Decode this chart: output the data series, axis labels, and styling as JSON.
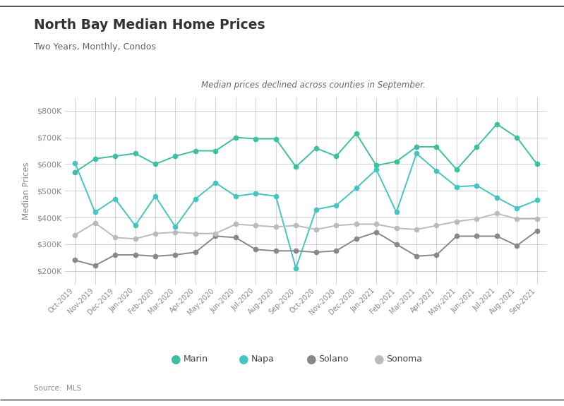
{
  "title": "North Bay Median Home Prices",
  "subtitle": "Two Years, Monthly, Condos",
  "annotation": "Median prices declined across counties in September.",
  "ylabel": "Median Prices",
  "source": "Source:  MLS",
  "background_color": "#ffffff",
  "plot_bg_color": "#ffffff",
  "grid_color": "#cccccc",
  "x_labels": [
    "Oct-2019",
    "Nov-2019",
    "Dec-2019",
    "Jan-2020",
    "Feb-2020",
    "Mar-2020",
    "Apr-2020",
    "May-2020",
    "Jun-2020",
    "Jul-2020",
    "Aug-2020",
    "Sep-2020",
    "Oct-2020",
    "Nov-2020",
    "Dec-2020",
    "Jan-2021",
    "Feb-2021",
    "Mar-2021",
    "Apr-2021",
    "May-2021",
    "Jun-2021",
    "Jul-2021",
    "Aug-2021",
    "Sep-2021"
  ],
  "marin": [
    570000,
    620000,
    630000,
    640000,
    600000,
    630000,
    650000,
    650000,
    700000,
    695000,
    695000,
    590000,
    660000,
    630000,
    715000,
    595000,
    610000,
    665000,
    665000,
    580000,
    665000,
    750000,
    700000,
    600000
  ],
  "napa": [
    605000,
    420000,
    470000,
    370000,
    480000,
    365000,
    470000,
    530000,
    480000,
    490000,
    480000,
    210000,
    430000,
    445000,
    510000,
    580000,
    420000,
    640000,
    575000,
    515000,
    520000,
    475000,
    435000,
    465000
  ],
  "solano": [
    240000,
    220000,
    260000,
    260000,
    255000,
    260000,
    270000,
    330000,
    325000,
    280000,
    275000,
    275000,
    270000,
    275000,
    320000,
    345000,
    300000,
    255000,
    260000,
    330000,
    330000,
    330000,
    295000,
    350000
  ],
  "sonoma": [
    335000,
    380000,
    325000,
    320000,
    340000,
    345000,
    340000,
    340000,
    375000,
    370000,
    365000,
    370000,
    355000,
    370000,
    375000,
    375000,
    360000,
    355000,
    370000,
    385000,
    395000,
    415000,
    395000,
    395000
  ],
  "marin_color": "#3dbfa0",
  "napa_color": "#45c5c0",
  "solano_color": "#888888",
  "sonoma_color": "#bbbbbb",
  "ylim": [
    150000,
    850000
  ],
  "yticks": [
    200000,
    300000,
    400000,
    500000,
    600000,
    700000,
    800000
  ],
  "top_line_color": "#333333",
  "title_color": "#333333",
  "subtitle_color": "#666666",
  "annotation_color": "#666666",
  "ylabel_color": "#888888",
  "tick_color": "#888888",
  "source_color": "#888888"
}
